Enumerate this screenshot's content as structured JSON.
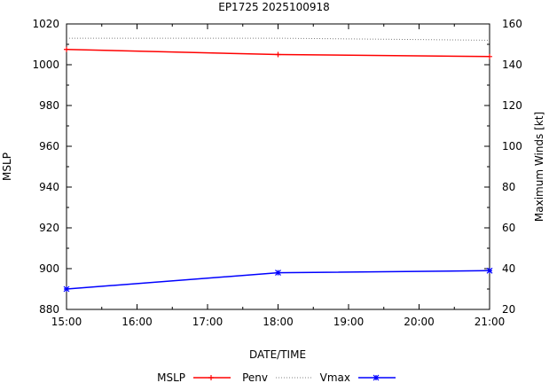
{
  "chart_data": {
    "type": "line",
    "title": "EP1725 2025100918",
    "xlabel": "DATE/TIME",
    "ylabel": "MSLP",
    "y2label": "Maximum Winds [kt]",
    "x_ticks": [
      "15:00",
      "16:00",
      "17:00",
      "18:00",
      "19:00",
      "20:00",
      "21:00"
    ],
    "x_hours": [
      15,
      16,
      17,
      18,
      19,
      20,
      21
    ],
    "xlim": [
      15,
      21
    ],
    "ylim": [
      880,
      1020
    ],
    "y_ticks": [
      880,
      900,
      920,
      940,
      960,
      980,
      1000,
      1020
    ],
    "y2lim": [
      20,
      160
    ],
    "y2_ticks": [
      20,
      40,
      60,
      80,
      100,
      120,
      140,
      160
    ],
    "legend_position": "bottom",
    "series": [
      {
        "name": "MSLP",
        "axis": "y",
        "color": "#ff0000",
        "style": "line-plus",
        "x": [
          15,
          18,
          21
        ],
        "values": [
          1007.5,
          1005,
          1004
        ]
      },
      {
        "name": "Penv",
        "axis": "y",
        "color": "#808080",
        "style": "dotted",
        "x": [
          15,
          18,
          21
        ],
        "values": [
          1013,
          1013,
          1012
        ]
      },
      {
        "name": "Vmax",
        "axis": "y2",
        "color": "#0000ff",
        "style": "line-star",
        "x": [
          15,
          18,
          21
        ],
        "values": [
          30,
          38,
          39
        ]
      }
    ]
  }
}
